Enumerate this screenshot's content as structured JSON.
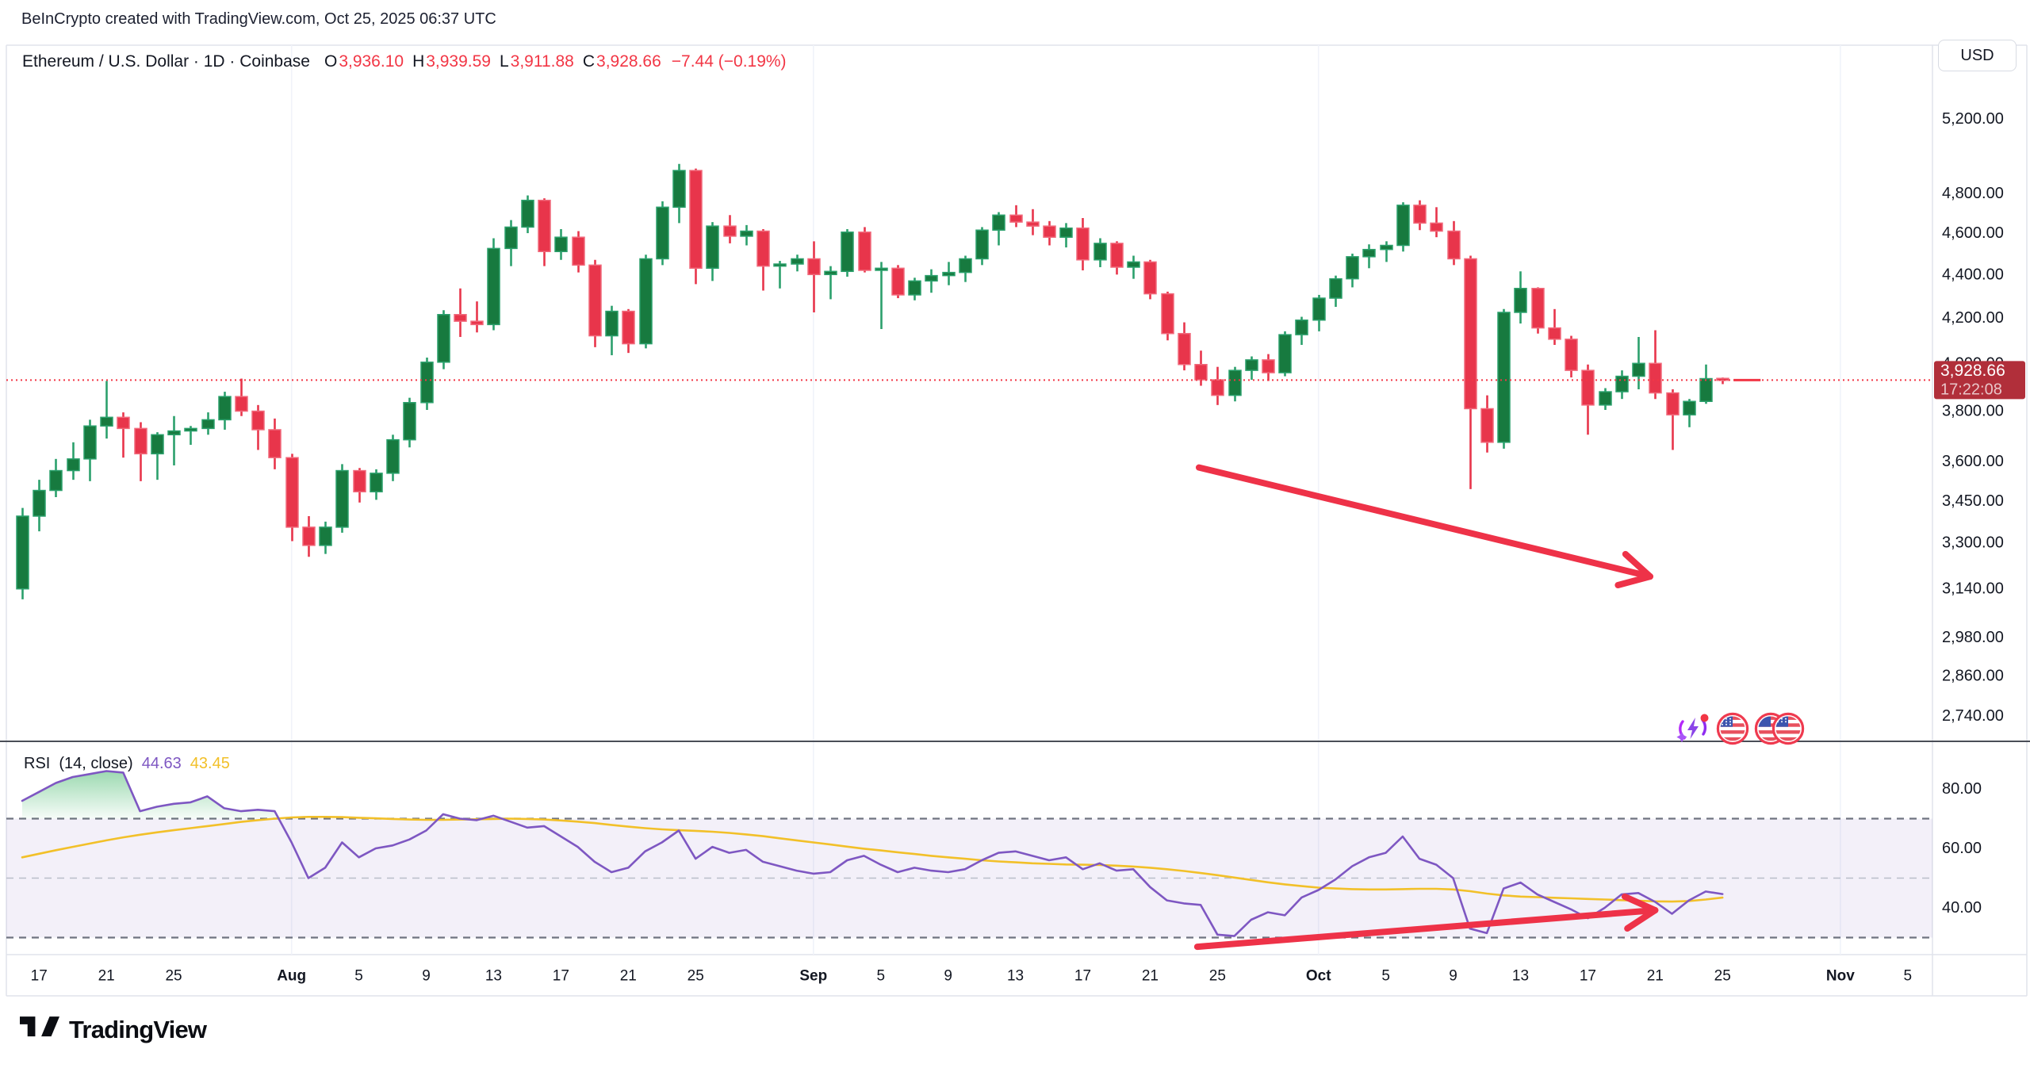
{
  "header": {
    "credit": "BeInCrypto created with TradingView.com, Oct 25, 2025 06:37 UTC"
  },
  "symbol_bar": {
    "title": "Ethereum / U.S. Dollar · 1D · Coinbase",
    "open_label": "O",
    "open": "3,936.10",
    "high_label": "H",
    "high": "3,939.59",
    "low_label": "L",
    "low": "3,911.88",
    "close_label": "C",
    "close": "3,928.66",
    "change": "−7.44 (−0.19%)"
  },
  "toolbar": {
    "currency_label": "USD"
  },
  "rsi_panel": {
    "name": "RSI",
    "params": "(14, close)",
    "value": "44.63",
    "ma_value": "43.45"
  },
  "footer": {
    "brand": "TradingView"
  },
  "colors": {
    "up_body": "#177a3f",
    "up_border": "#2ba06c",
    "up_wick": "#2ba06c",
    "down_body": "#e8354b",
    "down_border": "#f1697b",
    "down_wick": "#e8354b",
    "price_line": "#f23645",
    "badge_bg": "#b12f3a",
    "badge_text": "#ffffff",
    "rsi_line": "#7e57c2",
    "rsi_ma_line": "#f2c029",
    "band_fill": "rgba(126,87,194,0.09)",
    "band_edge": "#6f7380",
    "band_mid": "#b9bdc9",
    "overbought_fill": "#22ab50",
    "arrow": "#ee3248",
    "grid": "#f0f3fa",
    "axis_text": "#131722",
    "frame": "#e0e3eb",
    "separator": "#4a4e57",
    "text_red": "#f23645"
  },
  "chart_data": {
    "type": "candlestick",
    "symbol": "Ethereum / U.S. Dollar",
    "interval": "1D",
    "exchange": "Coinbase",
    "scale": "log",
    "start_date": "Jul 16",
    "ohlc_current": {
      "open": 3936.1,
      "high": 3939.59,
      "low": 3911.88,
      "close": 3928.66,
      "change": -7.44,
      "change_pct": -0.19
    },
    "last_price": 3928.66,
    "last_price_label": "3,928.66",
    "countdown": "17:22:08",
    "candles": [
      [
        3140,
        3425,
        3105,
        3395
      ],
      [
        3395,
        3530,
        3340,
        3490
      ],
      [
        3490,
        3610,
        3465,
        3565
      ],
      [
        3565,
        3675,
        3530,
        3610
      ],
      [
        3610,
        3765,
        3525,
        3740
      ],
      [
        3740,
        3925,
        3690,
        3775
      ],
      [
        3775,
        3795,
        3615,
        3730
      ],
      [
        3730,
        3755,
        3525,
        3630
      ],
      [
        3630,
        3715,
        3530,
        3705
      ],
      [
        3705,
        3780,
        3585,
        3720
      ],
      [
        3720,
        3740,
        3665,
        3730
      ],
      [
        3730,
        3795,
        3705,
        3765
      ],
      [
        3765,
        3880,
        3725,
        3860
      ],
      [
        3860,
        3935,
        3780,
        3800
      ],
      [
        3800,
        3825,
        3645,
        3725
      ],
      [
        3725,
        3770,
        3570,
        3615
      ],
      [
        3615,
        3630,
        3305,
        3355
      ],
      [
        3355,
        3395,
        3250,
        3290
      ],
      [
        3290,
        3375,
        3260,
        3355
      ],
      [
        3355,
        3590,
        3335,
        3565
      ],
      [
        3565,
        3575,
        3445,
        3485
      ],
      [
        3485,
        3570,
        3455,
        3555
      ],
      [
        3555,
        3705,
        3525,
        3685
      ],
      [
        3685,
        3855,
        3655,
        3835
      ],
      [
        3835,
        4025,
        3805,
        4005
      ],
      [
        4005,
        4235,
        3975,
        4215
      ],
      [
        4215,
        4335,
        4115,
        4185
      ],
      [
        4185,
        4275,
        4135,
        4170
      ],
      [
        4170,
        4575,
        4145,
        4525
      ],
      [
        4525,
        4665,
        4440,
        4630
      ],
      [
        4630,
        4790,
        4600,
        4765
      ],
      [
        4765,
        4775,
        4440,
        4510
      ],
      [
        4510,
        4620,
        4470,
        4580
      ],
      [
        4580,
        4610,
        4410,
        4445
      ],
      [
        4445,
        4470,
        4070,
        4120
      ],
      [
        4120,
        4255,
        4035,
        4230
      ],
      [
        4230,
        4240,
        4045,
        4085
      ],
      [
        4085,
        4495,
        4065,
        4475
      ],
      [
        4475,
        4760,
        4445,
        4730
      ],
      [
        4730,
        4955,
        4650,
        4920
      ],
      [
        4920,
        4930,
        4355,
        4430
      ],
      [
        4430,
        4655,
        4370,
        4635
      ],
      [
        4635,
        4690,
        4550,
        4585
      ],
      [
        4585,
        4640,
        4540,
        4610
      ],
      [
        4610,
        4620,
        4325,
        4440
      ],
      [
        4440,
        4465,
        4335,
        4450
      ],
      [
        4450,
        4495,
        4415,
        4475
      ],
      [
        4475,
        4560,
        4225,
        4400
      ],
      [
        4400,
        4440,
        4285,
        4415
      ],
      [
        4415,
        4620,
        4390,
        4605
      ],
      [
        4605,
        4630,
        4410,
        4420
      ],
      [
        4420,
        4460,
        4150,
        4430
      ],
      [
        4430,
        4445,
        4290,
        4305
      ],
      [
        4305,
        4385,
        4280,
        4370
      ],
      [
        4370,
        4425,
        4315,
        4395
      ],
      [
        4395,
        4460,
        4350,
        4410
      ],
      [
        4410,
        4490,
        4365,
        4475
      ],
      [
        4475,
        4630,
        4445,
        4615
      ],
      [
        4615,
        4705,
        4540,
        4690
      ],
      [
        4690,
        4740,
        4630,
        4655
      ],
      [
        4655,
        4720,
        4590,
        4635
      ],
      [
        4635,
        4660,
        4540,
        4580
      ],
      [
        4580,
        4650,
        4530,
        4625
      ],
      [
        4625,
        4675,
        4420,
        4470
      ],
      [
        4470,
        4575,
        4435,
        4550
      ],
      [
        4550,
        4560,
        4400,
        4435
      ],
      [
        4435,
        4490,
        4380,
        4460
      ],
      [
        4460,
        4470,
        4285,
        4310
      ],
      [
        4310,
        4320,
        4100,
        4130
      ],
      [
        4130,
        4180,
        3970,
        3995
      ],
      [
        3995,
        4055,
        3905,
        3930
      ],
      [
        3930,
        3985,
        3825,
        3865
      ],
      [
        3865,
        3985,
        3840,
        3970
      ],
      [
        3970,
        4030,
        3930,
        4015
      ],
      [
        4015,
        4040,
        3925,
        3960
      ],
      [
        3960,
        4140,
        3945,
        4125
      ],
      [
        4125,
        4205,
        4080,
        4190
      ],
      [
        4190,
        4305,
        4140,
        4290
      ],
      [
        4290,
        4395,
        4250,
        4380
      ],
      [
        4380,
        4500,
        4340,
        4485
      ],
      [
        4485,
        4545,
        4430,
        4520
      ],
      [
        4520,
        4560,
        4460,
        4540
      ],
      [
        4540,
        4755,
        4510,
        4740
      ],
      [
        4740,
        4765,
        4615,
        4650
      ],
      [
        4650,
        4730,
        4580,
        4610
      ],
      [
        4610,
        4660,
        4445,
        4475
      ],
      [
        4475,
        4490,
        3495,
        3810
      ],
      [
        3810,
        3865,
        3635,
        3675
      ],
      [
        3675,
        4240,
        3650,
        4225
      ],
      [
        4225,
        4415,
        4175,
        4335
      ],
      [
        4335,
        4340,
        4130,
        4155
      ],
      [
        4155,
        4240,
        4080,
        4105
      ],
      [
        4105,
        4120,
        3940,
        3970
      ],
      [
        3970,
        3995,
        3705,
        3825
      ],
      [
        3825,
        3895,
        3805,
        3880
      ],
      [
        3880,
        3970,
        3850,
        3945
      ],
      [
        3945,
        4115,
        3890,
        4000
      ],
      [
        4000,
        4145,
        3850,
        3875
      ],
      [
        3875,
        3890,
        3645,
        3785
      ],
      [
        3785,
        3850,
        3735,
        3840
      ],
      [
        3840,
        3995,
        3830,
        3935
      ],
      [
        3936.1,
        3939.59,
        3911.88,
        3928.66
      ]
    ],
    "price_axis_ticks": [
      {
        "label": "5,200.00",
        "value": 5200
      },
      {
        "label": "4,800.00",
        "value": 4800
      },
      {
        "label": "4,600.00",
        "value": 4600
      },
      {
        "label": "4,400.00",
        "value": 4400
      },
      {
        "label": "4,200.00",
        "value": 4200
      },
      {
        "label": "4,000.00",
        "value": 4000
      },
      {
        "label": "3,800.00",
        "value": 3800
      },
      {
        "label": "3,600.00",
        "value": 3600
      },
      {
        "label": "3,450.00",
        "value": 3450
      },
      {
        "label": "3,300.00",
        "value": 3300
      },
      {
        "label": "3,140.00",
        "value": 3140
      },
      {
        "label": "2,980.00",
        "value": 2980
      },
      {
        "label": "2,860.00",
        "value": 2860
      },
      {
        "label": "2,740.00",
        "value": 2740
      }
    ],
    "time_axis_ticks": [
      {
        "label": "17",
        "day": 1,
        "bold": false
      },
      {
        "label": "21",
        "day": 5,
        "bold": false
      },
      {
        "label": "25",
        "day": 9,
        "bold": false
      },
      {
        "label": "Aug",
        "day": 16,
        "bold": true
      },
      {
        "label": "5",
        "day": 20,
        "bold": false
      },
      {
        "label": "9",
        "day": 24,
        "bold": false
      },
      {
        "label": "13",
        "day": 28,
        "bold": false
      },
      {
        "label": "17",
        "day": 32,
        "bold": false
      },
      {
        "label": "21",
        "day": 36,
        "bold": false
      },
      {
        "label": "25",
        "day": 40,
        "bold": false
      },
      {
        "label": "Sep",
        "day": 47,
        "bold": true
      },
      {
        "label": "5",
        "day": 51,
        "bold": false
      },
      {
        "label": "9",
        "day": 55,
        "bold": false
      },
      {
        "label": "13",
        "day": 59,
        "bold": false
      },
      {
        "label": "17",
        "day": 63,
        "bold": false
      },
      {
        "label": "21",
        "day": 67,
        "bold": false
      },
      {
        "label": "25",
        "day": 71,
        "bold": false
      },
      {
        "label": "Oct",
        "day": 77,
        "bold": true
      },
      {
        "label": "5",
        "day": 81,
        "bold": false
      },
      {
        "label": "9",
        "day": 85,
        "bold": false
      },
      {
        "label": "13",
        "day": 89,
        "bold": false
      },
      {
        "label": "17",
        "day": 93,
        "bold": false
      },
      {
        "label": "21",
        "day": 97,
        "bold": false
      },
      {
        "label": "25",
        "day": 101,
        "bold": false
      },
      {
        "label": "Nov",
        "day": 108,
        "bold": true
      },
      {
        "label": "5",
        "day": 112,
        "bold": false
      }
    ],
    "rsi": {
      "length": 14,
      "source": "close",
      "current_value": 44.63,
      "current_ma": 43.45,
      "levels": [
        {
          "label": "80.00",
          "value": 80
        },
        {
          "label": "60.00",
          "value": 60
        },
        {
          "label": "40.00",
          "value": 40
        }
      ],
      "bands": {
        "upper": 70,
        "middle": 50,
        "lower": 30
      },
      "values": [
        76,
        79,
        82,
        84,
        85,
        86,
        85.5,
        72.5,
        74,
        75,
        75.5,
        77.5,
        73.5,
        72.5,
        73,
        72.5,
        62,
        50,
        53.5,
        62,
        57,
        60,
        61,
        63,
        66,
        71.5,
        70,
        69.5,
        71,
        69,
        67,
        67.5,
        64,
        60.5,
        55.5,
        52,
        53.5,
        59,
        62,
        66,
        56.5,
        60.5,
        58.5,
        59.5,
        55.5,
        54,
        52.5,
        51.5,
        52,
        56,
        57.5,
        54.5,
        52,
        53.5,
        52.5,
        52,
        53,
        56,
        58.5,
        59,
        57.5,
        56,
        57,
        53,
        55,
        52.5,
        53,
        47,
        42.5,
        41.5,
        41,
        31,
        30.5,
        36,
        38.5,
        37.5,
        43.5,
        46,
        49.5,
        54,
        57,
        58.5,
        64,
        56.5,
        54.5,
        50,
        33,
        31.5,
        46.5,
        48.5,
        44.5,
        42,
        39.5,
        36.5,
        40,
        44.5,
        45,
        42,
        38,
        42.5,
        45.5,
        44.63
      ],
      "ma_values": [
        57,
        58.2,
        59.4,
        60.5,
        61.6,
        62.7,
        63.7,
        64.6,
        65.4,
        66.1,
        66.8,
        67.5,
        68.2,
        68.9,
        69.5,
        70,
        70.4,
        70.6,
        70.6,
        70.5,
        70.3,
        70.1,
        69.9,
        69.7,
        69.6,
        69.6,
        69.7,
        69.8,
        69.9,
        70,
        69.9,
        69.7,
        69.4,
        69,
        68.5,
        67.9,
        67.3,
        66.8,
        66.4,
        66.1,
        65.9,
        65.6,
        65.2,
        64.7,
        64.1,
        63.4,
        62.7,
        62,
        61.3,
        60.6,
        59.9,
        59.3,
        58.7,
        58.1,
        57.5,
        57,
        56.5,
        56,
        55.6,
        55.3,
        55,
        54.8,
        54.6,
        54.5,
        54.4,
        54.2,
        53.9,
        53.5,
        53,
        52.4,
        51.7,
        51,
        50.2,
        49.4,
        48.6,
        47.9,
        47.3,
        46.8,
        46.5,
        46.3,
        46.2,
        46.2,
        46.3,
        46.4,
        46.4,
        46.2,
        45.6,
        44.8,
        44.2,
        43.8,
        43.6,
        43.4,
        43.2,
        43,
        42.8,
        42.6,
        42.4,
        42.2,
        42.1,
        42.3,
        42.8,
        43.45
      ]
    },
    "annotations": [
      {
        "type": "arrow",
        "pane": "price",
        "from_day": 69.9,
        "from_price": 3577,
        "to_day": 96.7,
        "to_price": 3182
      },
      {
        "type": "arrow",
        "pane": "rsi",
        "from_day": 69.8,
        "from_value": 26.9,
        "to_day": 97.0,
        "to_value": 39.2
      }
    ]
  }
}
